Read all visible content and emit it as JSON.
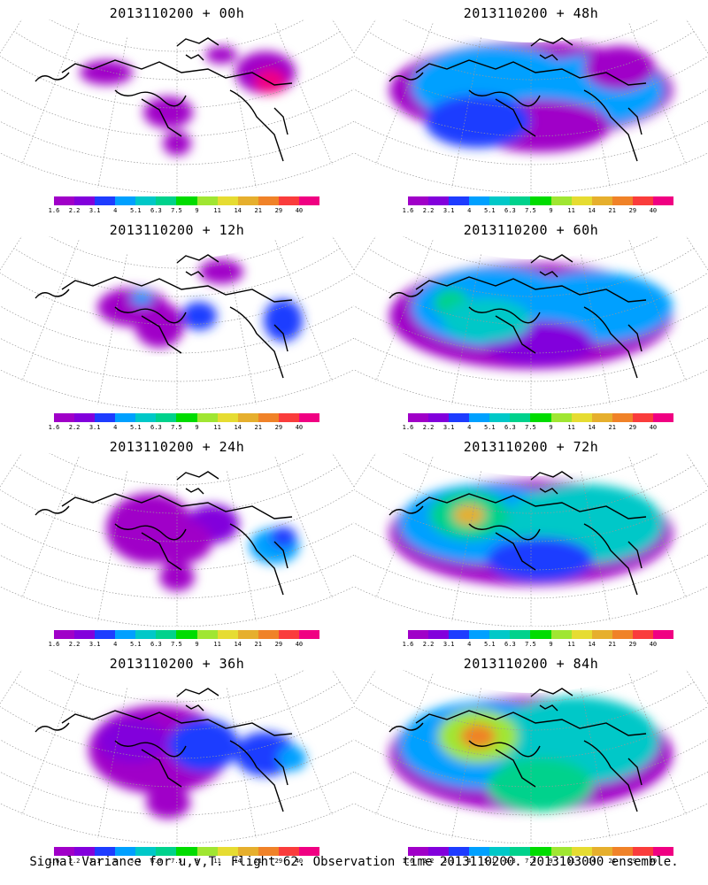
{
  "panels": [
    {
      "title": "2013110200 + 00h"
    },
    {
      "title": "2013110200 + 48h"
    },
    {
      "title": "2013110200 + 12h"
    },
    {
      "title": "2013110200 + 60h"
    },
    {
      "title": "2013110200 + 24h"
    },
    {
      "title": "2013110200 + 72h"
    },
    {
      "title": "2013110200 + 36h"
    },
    {
      "title": "2013110200 + 84h"
    }
  ],
  "colorbar": {
    "colors": [
      "#a000c8",
      "#8200dc",
      "#1e3cff",
      "#00a0ff",
      "#00c8c8",
      "#00d28c",
      "#00dc00",
      "#a0e632",
      "#e6dc32",
      "#e6af2d",
      "#f08228",
      "#fa3c3c",
      "#f00082"
    ],
    "labels": [
      "1.6",
      "2.2",
      "3.1",
      "4",
      "5.1",
      "6.3",
      "7.5",
      "9",
      "11",
      "14",
      "21",
      "29",
      "40"
    ]
  },
  "caption": "Signal Variance for u,v,T. Flight 62. Observation time 2013110200. 2013103000 ensemble."
}
